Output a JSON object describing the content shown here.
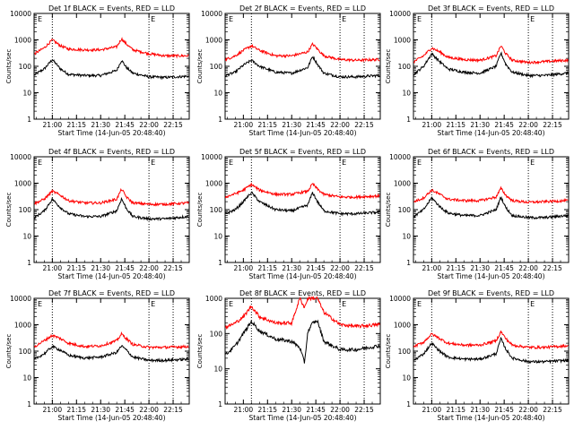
{
  "ylabel": "Counts/sec",
  "xlabel": "Start Time (14-Jun-05 20:48:40)",
  "x_ticks": [
    "21:00",
    "21:15",
    "21:30",
    "21:45",
    "22:00",
    "22:15"
  ],
  "y_ticks": [
    "1",
    "10",
    "100",
    "1000",
    "10000"
  ],
  "markers": [
    "E",
    "E"
  ],
  "colors": {
    "events": "#000000",
    "lld": "#ff0000"
  },
  "chart_data": [
    {
      "type": "line",
      "title": "Det 1f BLACK = Events, RED = LLD",
      "xlim": [
        "20:48:40",
        "22:25:00"
      ],
      "ylim": [
        1,
        10000
      ],
      "yscale": "log",
      "dotted_lines": [
        "21:00",
        "22:00",
        "22:15"
      ],
      "x": [
        "20:49",
        "20:55",
        "21:00",
        "21:05",
        "21:10",
        "21:20",
        "21:30",
        "21:40",
        "21:43",
        "21:46",
        "21:50",
        "22:00",
        "22:10",
        "22:24"
      ],
      "series": [
        {
          "name": "Events",
          "color": "#000000",
          "values": [
            48,
            80,
            180,
            80,
            50,
            45,
            45,
            70,
            170,
            90,
            55,
            40,
            38,
            42
          ]
        },
        {
          "name": "LLD",
          "color": "#ff0000",
          "values": [
            300,
            500,
            1000,
            600,
            450,
            420,
            420,
            550,
            1100,
            700,
            420,
            300,
            250,
            250
          ]
        }
      ]
    },
    {
      "type": "line",
      "title": "Det 2f BLACK = Events, RED = LLD",
      "xlim": [
        "20:48:40",
        "22:25:00"
      ],
      "ylim": [
        1,
        10000
      ],
      "yscale": "log",
      "dotted_lines": [
        "21:05",
        "22:00",
        "22:15"
      ],
      "x": [
        "20:49",
        "20:55",
        "21:00",
        "21:05",
        "21:10",
        "21:20",
        "21:30",
        "21:40",
        "21:43",
        "21:46",
        "21:50",
        "22:00",
        "22:10",
        "22:24"
      ],
      "series": [
        {
          "name": "Events",
          "color": "#000000",
          "values": [
            45,
            60,
            110,
            170,
            100,
            60,
            55,
            90,
            240,
            120,
            55,
            40,
            40,
            45
          ]
        },
        {
          "name": "LLD",
          "color": "#ff0000",
          "values": [
            180,
            250,
            400,
            600,
            400,
            250,
            250,
            350,
            700,
            450,
            250,
            180,
            170,
            180
          ]
        }
      ]
    },
    {
      "type": "line",
      "title": "Det 3f BLACK = Events, RED = LLD",
      "xlim": [
        "20:48:40",
        "22:25:00"
      ],
      "ylim": [
        1,
        10000
      ],
      "yscale": "log",
      "dotted_lines": [
        "21:00",
        "22:00",
        "22:15"
      ],
      "x": [
        "20:49",
        "20:55",
        "21:00",
        "21:05",
        "21:10",
        "21:20",
        "21:30",
        "21:40",
        "21:43",
        "21:46",
        "21:50",
        "22:00",
        "22:10",
        "22:24"
      ],
      "series": [
        {
          "name": "Events",
          "color": "#000000",
          "values": [
            50,
            100,
            300,
            150,
            80,
            60,
            55,
            100,
            320,
            120,
            60,
            45,
            45,
            55
          ]
        },
        {
          "name": "LLD",
          "color": "#ff0000",
          "values": [
            150,
            250,
            500,
            350,
            220,
            180,
            170,
            250,
            600,
            300,
            170,
            140,
            150,
            170
          ]
        }
      ]
    },
    {
      "type": "line",
      "title": "Det 4f BLACK = Events, RED = LLD",
      "xlim": [
        "20:48:40",
        "22:25:00"
      ],
      "ylim": [
        1,
        10000
      ],
      "yscale": "log",
      "dotted_lines": [
        "21:00",
        "22:00",
        "22:15"
      ],
      "x": [
        "20:49",
        "20:55",
        "21:00",
        "21:05",
        "21:10",
        "21:20",
        "21:30",
        "21:40",
        "21:43",
        "21:46",
        "21:50",
        "22:00",
        "22:10",
        "22:24"
      ],
      "series": [
        {
          "name": "Events",
          "color": "#000000",
          "values": [
            50,
            90,
            250,
            120,
            70,
            55,
            55,
            90,
            260,
            110,
            55,
            45,
            45,
            55
          ]
        },
        {
          "name": "LLD",
          "color": "#ff0000",
          "values": [
            170,
            250,
            500,
            350,
            220,
            180,
            180,
            250,
            600,
            300,
            180,
            160,
            160,
            180
          ]
        }
      ]
    },
    {
      "type": "line",
      "title": "Det 5f BLACK = Events, RED = LLD",
      "xlim": [
        "20:48:40",
        "22:25:00"
      ],
      "ylim": [
        1,
        10000
      ],
      "yscale": "log",
      "dotted_lines": [
        "21:05",
        "22:00",
        "22:15"
      ],
      "x": [
        "20:49",
        "20:55",
        "21:00",
        "21:05",
        "21:10",
        "21:20",
        "21:30",
        "21:40",
        "21:43",
        "21:46",
        "21:50",
        "22:00",
        "22:10",
        "22:24"
      ],
      "series": [
        {
          "name": "Events",
          "color": "#000000",
          "values": [
            70,
            100,
            200,
            450,
            200,
            100,
            90,
            150,
            450,
            200,
            90,
            70,
            70,
            80
          ]
        },
        {
          "name": "LLD",
          "color": "#ff0000",
          "values": [
            300,
            400,
            550,
            900,
            550,
            380,
            380,
            500,
            950,
            600,
            380,
            300,
            300,
            330
          ]
        }
      ]
    },
    {
      "type": "line",
      "title": "Det 6f BLACK = Events, RED = LLD",
      "xlim": [
        "20:48:40",
        "22:25:00"
      ],
      "ylim": [
        1,
        10000
      ],
      "yscale": "log",
      "dotted_lines": [
        "21:00",
        "22:00",
        "22:15"
      ],
      "x": [
        "20:49",
        "20:55",
        "21:00",
        "21:05",
        "21:10",
        "21:20",
        "21:30",
        "21:40",
        "21:43",
        "21:46",
        "21:50",
        "22:00",
        "22:10",
        "22:24"
      ],
      "series": [
        {
          "name": "Events",
          "color": "#000000",
          "values": [
            55,
            100,
            280,
            130,
            75,
            60,
            60,
            100,
            300,
            120,
            60,
            50,
            50,
            60
          ]
        },
        {
          "name": "LLD",
          "color": "#ff0000",
          "values": [
            200,
            280,
            550,
            380,
            250,
            220,
            220,
            300,
            650,
            350,
            220,
            190,
            200,
            220
          ]
        }
      ]
    },
    {
      "type": "line",
      "title": "Det 7f BLACK = Events, RED = LLD",
      "xlim": [
        "20:48:40",
        "22:25:00"
      ],
      "ylim": [
        1,
        10000
      ],
      "yscale": "log",
      "dotted_lines": [
        "21:00",
        "22:00",
        "22:15"
      ],
      "x": [
        "20:49",
        "20:55",
        "21:00",
        "21:05",
        "21:10",
        "21:20",
        "21:30",
        "21:40",
        "21:43",
        "21:46",
        "21:50",
        "22:00",
        "22:10",
        "22:24"
      ],
      "series": [
        {
          "name": "Events",
          "color": "#000000",
          "values": [
            50,
            80,
            150,
            110,
            70,
            55,
            60,
            90,
            160,
            110,
            60,
            45,
            45,
            50
          ]
        },
        {
          "name": "LLD",
          "color": "#ff0000",
          "values": [
            150,
            250,
            400,
            300,
            200,
            150,
            160,
            250,
            450,
            300,
            180,
            140,
            140,
            150
          ]
        }
      ]
    },
    {
      "type": "line",
      "title": "Det 8f BLACK = Events, RED = LLD",
      "xlim": [
        "20:48:40",
        "22:25:00"
      ],
      "ylim": [
        1,
        1000
      ],
      "yscale": "log",
      "dotted_lines": [
        "21:05",
        "22:00",
        "22:15"
      ],
      "x": [
        "20:49",
        "20:55",
        "21:00",
        "21:05",
        "21:10",
        "21:20",
        "21:30",
        "21:35",
        "21:38",
        "21:40",
        "21:43",
        "21:46",
        "21:50",
        "22:00",
        "22:10",
        "22:24"
      ],
      "series": [
        {
          "name": "Events",
          "color": "#000000",
          "values": [
            25,
            45,
            100,
            220,
            120,
            70,
            60,
            40,
            15,
            110,
            200,
            230,
            60,
            35,
            35,
            45
          ]
        },
        {
          "name": "LLD",
          "color": "#ff0000",
          "values": [
            150,
            200,
            300,
            600,
            300,
            200,
            200,
            1000,
            550,
            1000,
            1000,
            1000,
            400,
            180,
            160,
            180
          ]
        }
      ]
    },
    {
      "type": "line",
      "title": "Det 9f BLACK = Events, RED = LLD",
      "xlim": [
        "20:48:40",
        "22:25:00"
      ],
      "ylim": [
        1,
        10000
      ],
      "yscale": "log",
      "dotted_lines": [
        "21:00",
        "22:00",
        "22:15"
      ],
      "x": [
        "20:49",
        "20:55",
        "21:00",
        "21:05",
        "21:10",
        "21:20",
        "21:30",
        "21:40",
        "21:43",
        "21:46",
        "21:50",
        "22:00",
        "22:10",
        "22:24"
      ],
      "series": [
        {
          "name": "Events",
          "color": "#000000",
          "values": [
            45,
            80,
            200,
            100,
            60,
            50,
            50,
            80,
            300,
            120,
            55,
            40,
            40,
            45
          ]
        },
        {
          "name": "LLD",
          "color": "#ff0000",
          "values": [
            150,
            220,
            450,
            300,
            200,
            170,
            170,
            250,
            550,
            300,
            170,
            140,
            140,
            160
          ]
        }
      ]
    }
  ]
}
